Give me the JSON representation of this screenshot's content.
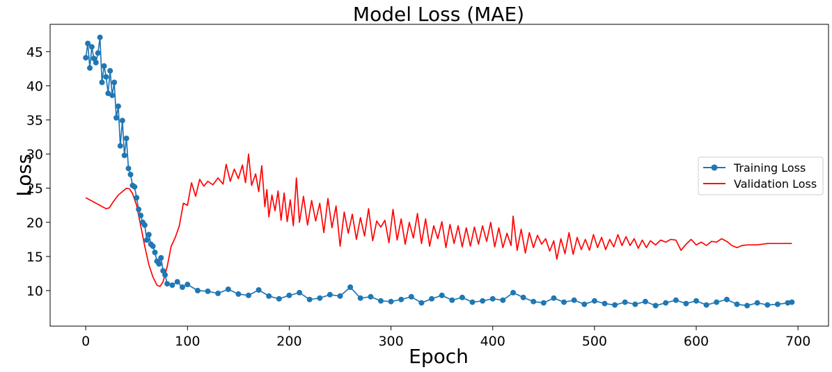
{
  "chart_data": {
    "type": "line",
    "title": "Model Loss (MAE)",
    "xlabel": "Epoch",
    "ylabel": "Loss",
    "xlim": [
      -35,
      730
    ],
    "ylim": [
      4.8,
      49
    ],
    "xticks": [
      0,
      100,
      200,
      300,
      400,
      500,
      600,
      700
    ],
    "yticks": [
      10,
      15,
      20,
      25,
      30,
      35,
      40,
      45
    ],
    "grid": false,
    "legend_position": "center-right",
    "colors": {
      "training": "#1f77b4",
      "validation": "#ff0000"
    },
    "series": [
      {
        "name": "Training Loss",
        "marker": "circle",
        "points": [
          [
            0,
            44.1
          ],
          [
            2,
            46.2
          ],
          [
            4,
            42.6
          ],
          [
            6,
            45.7
          ],
          [
            8,
            44.0
          ],
          [
            10,
            43.4
          ],
          [
            12,
            44.8
          ],
          [
            14,
            47.1
          ],
          [
            16,
            40.5
          ],
          [
            18,
            42.9
          ],
          [
            20,
            41.3
          ],
          [
            22,
            38.9
          ],
          [
            24,
            42.2
          ],
          [
            26,
            38.6
          ],
          [
            28,
            40.5
          ],
          [
            30,
            35.3
          ],
          [
            32,
            37.0
          ],
          [
            34,
            31.2
          ],
          [
            36,
            34.9
          ],
          [
            38,
            29.8
          ],
          [
            40,
            32.3
          ],
          [
            42,
            27.9
          ],
          [
            44,
            27.0
          ],
          [
            46,
            25.4
          ],
          [
            48,
            25.2
          ],
          [
            50,
            23.6
          ],
          [
            52,
            21.9
          ],
          [
            54,
            21.0
          ],
          [
            56,
            20.0
          ],
          [
            58,
            19.6
          ],
          [
            60,
            17.4
          ],
          [
            62,
            18.2
          ],
          [
            64,
            16.8
          ],
          [
            66,
            16.5
          ],
          [
            68,
            15.6
          ],
          [
            70,
            14.3
          ],
          [
            72,
            13.9
          ],
          [
            74,
            14.8
          ],
          [
            76,
            12.9
          ],
          [
            78,
            12.3
          ],
          [
            80,
            11.0
          ],
          [
            85,
            10.8
          ],
          [
            90,
            11.3
          ],
          [
            95,
            10.5
          ],
          [
            100,
            10.9
          ],
          [
            110,
            10.0
          ],
          [
            120,
            9.9
          ],
          [
            130,
            9.6
          ],
          [
            140,
            10.2
          ],
          [
            150,
            9.5
          ],
          [
            160,
            9.3
          ],
          [
            170,
            10.1
          ],
          [
            180,
            9.2
          ],
          [
            190,
            8.8
          ],
          [
            200,
            9.3
          ],
          [
            210,
            9.7
          ],
          [
            220,
            8.7
          ],
          [
            230,
            8.9
          ],
          [
            240,
            9.4
          ],
          [
            250,
            9.2
          ],
          [
            260,
            10.5
          ],
          [
            270,
            8.9
          ],
          [
            280,
            9.1
          ],
          [
            290,
            8.5
          ],
          [
            300,
            8.4
          ],
          [
            310,
            8.7
          ],
          [
            320,
            9.1
          ],
          [
            330,
            8.2
          ],
          [
            340,
            8.8
          ],
          [
            350,
            9.3
          ],
          [
            360,
            8.6
          ],
          [
            370,
            9.0
          ],
          [
            380,
            8.3
          ],
          [
            390,
            8.5
          ],
          [
            400,
            8.8
          ],
          [
            410,
            8.6
          ],
          [
            420,
            9.7
          ],
          [
            430,
            9.0
          ],
          [
            440,
            8.4
          ],
          [
            450,
            8.2
          ],
          [
            460,
            8.9
          ],
          [
            470,
            8.3
          ],
          [
            480,
            8.6
          ],
          [
            490,
            8.0
          ],
          [
            500,
            8.5
          ],
          [
            510,
            8.1
          ],
          [
            520,
            7.9
          ],
          [
            530,
            8.3
          ],
          [
            540,
            8.0
          ],
          [
            550,
            8.4
          ],
          [
            560,
            7.8
          ],
          [
            570,
            8.2
          ],
          [
            580,
            8.6
          ],
          [
            590,
            8.1
          ],
          [
            600,
            8.5
          ],
          [
            610,
            7.9
          ],
          [
            620,
            8.3
          ],
          [
            630,
            8.7
          ],
          [
            640,
            8.0
          ],
          [
            650,
            7.8
          ],
          [
            660,
            8.2
          ],
          [
            670,
            7.9
          ],
          [
            680,
            8.0
          ],
          [
            690,
            8.2
          ],
          [
            694,
            8.3
          ]
        ]
      },
      {
        "name": "Validation Loss",
        "marker": "none",
        "points": [
          [
            0,
            23.6
          ],
          [
            5,
            23.2
          ],
          [
            10,
            22.8
          ],
          [
            15,
            22.4
          ],
          [
            20,
            22.0
          ],
          [
            23,
            22.1
          ],
          [
            27,
            23.0
          ],
          [
            32,
            24.0
          ],
          [
            36,
            24.5
          ],
          [
            40,
            25.0
          ],
          [
            43,
            24.9
          ],
          [
            46,
            24.2
          ],
          [
            50,
            22.5
          ],
          [
            54,
            19.5
          ],
          [
            58,
            16.5
          ],
          [
            62,
            13.8
          ],
          [
            66,
            12.0
          ],
          [
            70,
            10.8
          ],
          [
            73,
            10.6
          ],
          [
            76,
            11.3
          ],
          [
            80,
            13.5
          ],
          [
            84,
            16.5
          ],
          [
            88,
            17.8
          ],
          [
            92,
            19.5
          ],
          [
            96,
            22.8
          ],
          [
            100,
            22.5
          ],
          [
            104,
            25.8
          ],
          [
            108,
            23.8
          ],
          [
            112,
            26.3
          ],
          [
            116,
            25.3
          ],
          [
            120,
            26.0
          ],
          [
            125,
            25.5
          ],
          [
            130,
            26.5
          ],
          [
            135,
            25.6
          ],
          [
            138,
            28.5
          ],
          [
            142,
            26.0
          ],
          [
            146,
            27.8
          ],
          [
            150,
            26.4
          ],
          [
            154,
            28.4
          ],
          [
            157,
            25.8
          ],
          [
            160,
            30.0
          ],
          [
            163,
            25.4
          ],
          [
            167,
            27.1
          ],
          [
            170,
            24.5
          ],
          [
            173,
            28.3
          ],
          [
            176,
            22.3
          ],
          [
            178,
            24.8
          ],
          [
            180,
            20.8
          ],
          [
            183,
            24.0
          ],
          [
            186,
            21.7
          ],
          [
            189,
            24.6
          ],
          [
            192,
            20.3
          ],
          [
            195,
            24.3
          ],
          [
            198,
            20.1
          ],
          [
            201,
            23.3
          ],
          [
            204,
            19.5
          ],
          [
            207,
            26.5
          ],
          [
            210,
            20.0
          ],
          [
            214,
            23.8
          ],
          [
            218,
            19.6
          ],
          [
            222,
            23.2
          ],
          [
            226,
            20.2
          ],
          [
            230,
            22.8
          ],
          [
            234,
            18.5
          ],
          [
            238,
            23.5
          ],
          [
            242,
            19.2
          ],
          [
            246,
            22.4
          ],
          [
            250,
            16.5
          ],
          [
            254,
            21.5
          ],
          [
            258,
            18.4
          ],
          [
            262,
            21.2
          ],
          [
            266,
            17.5
          ],
          [
            270,
            20.7
          ],
          [
            274,
            18.0
          ],
          [
            278,
            22.0
          ],
          [
            282,
            17.3
          ],
          [
            286,
            20.2
          ],
          [
            290,
            19.3
          ],
          [
            294,
            20.3
          ],
          [
            298,
            17.0
          ],
          [
            302,
            21.9
          ],
          [
            306,
            17.4
          ],
          [
            310,
            20.5
          ],
          [
            314,
            16.8
          ],
          [
            318,
            20.0
          ],
          [
            322,
            17.7
          ],
          [
            326,
            21.3
          ],
          [
            330,
            16.9
          ],
          [
            334,
            20.5
          ],
          [
            338,
            16.5
          ],
          [
            342,
            19.5
          ],
          [
            346,
            17.6
          ],
          [
            350,
            20.1
          ],
          [
            354,
            16.3
          ],
          [
            358,
            19.7
          ],
          [
            362,
            16.9
          ],
          [
            366,
            19.5
          ],
          [
            370,
            16.4
          ],
          [
            374,
            19.2
          ],
          [
            378,
            16.5
          ],
          [
            382,
            19.3
          ],
          [
            386,
            16.8
          ],
          [
            390,
            19.5
          ],
          [
            394,
            17.2
          ],
          [
            398,
            20.0
          ],
          [
            402,
            16.4
          ],
          [
            406,
            19.2
          ],
          [
            410,
            16.3
          ],
          [
            414,
            18.4
          ],
          [
            418,
            16.6
          ],
          [
            420,
            20.9
          ],
          [
            424,
            15.9
          ],
          [
            428,
            19.0
          ],
          [
            432,
            15.5
          ],
          [
            436,
            18.5
          ],
          [
            440,
            16.3
          ],
          [
            444,
            18.1
          ],
          [
            448,
            16.8
          ],
          [
            452,
            17.6
          ],
          [
            456,
            15.8
          ],
          [
            460,
            17.3
          ],
          [
            463,
            14.6
          ],
          [
            467,
            17.6
          ],
          [
            471,
            15.4
          ],
          [
            475,
            18.5
          ],
          [
            479,
            15.3
          ],
          [
            483,
            17.8
          ],
          [
            487,
            16.0
          ],
          [
            491,
            17.5
          ],
          [
            495,
            15.9
          ],
          [
            499,
            18.2
          ],
          [
            503,
            16.3
          ],
          [
            507,
            17.8
          ],
          [
            511,
            16.0
          ],
          [
            515,
            17.5
          ],
          [
            519,
            16.4
          ],
          [
            523,
            18.2
          ],
          [
            527,
            16.6
          ],
          [
            531,
            17.9
          ],
          [
            535,
            16.6
          ],
          [
            539,
            17.6
          ],
          [
            543,
            16.2
          ],
          [
            547,
            17.4
          ],
          [
            551,
            16.3
          ],
          [
            555,
            17.3
          ],
          [
            560,
            16.7
          ],
          [
            565,
            17.4
          ],
          [
            570,
            17.1
          ],
          [
            575,
            17.5
          ],
          [
            580,
            17.4
          ],
          [
            585,
            15.9
          ],
          [
            590,
            16.8
          ],
          [
            595,
            17.5
          ],
          [
            600,
            16.7
          ],
          [
            605,
            17.1
          ],
          [
            610,
            16.6
          ],
          [
            615,
            17.2
          ],
          [
            620,
            17.1
          ],
          [
            625,
            17.6
          ],
          [
            630,
            17.2
          ],
          [
            635,
            16.6
          ],
          [
            640,
            16.3
          ],
          [
            645,
            16.6
          ],
          [
            650,
            16.7
          ],
          [
            660,
            16.7
          ],
          [
            670,
            16.9
          ],
          [
            680,
            16.9
          ],
          [
            694,
            16.9
          ]
        ]
      }
    ]
  }
}
